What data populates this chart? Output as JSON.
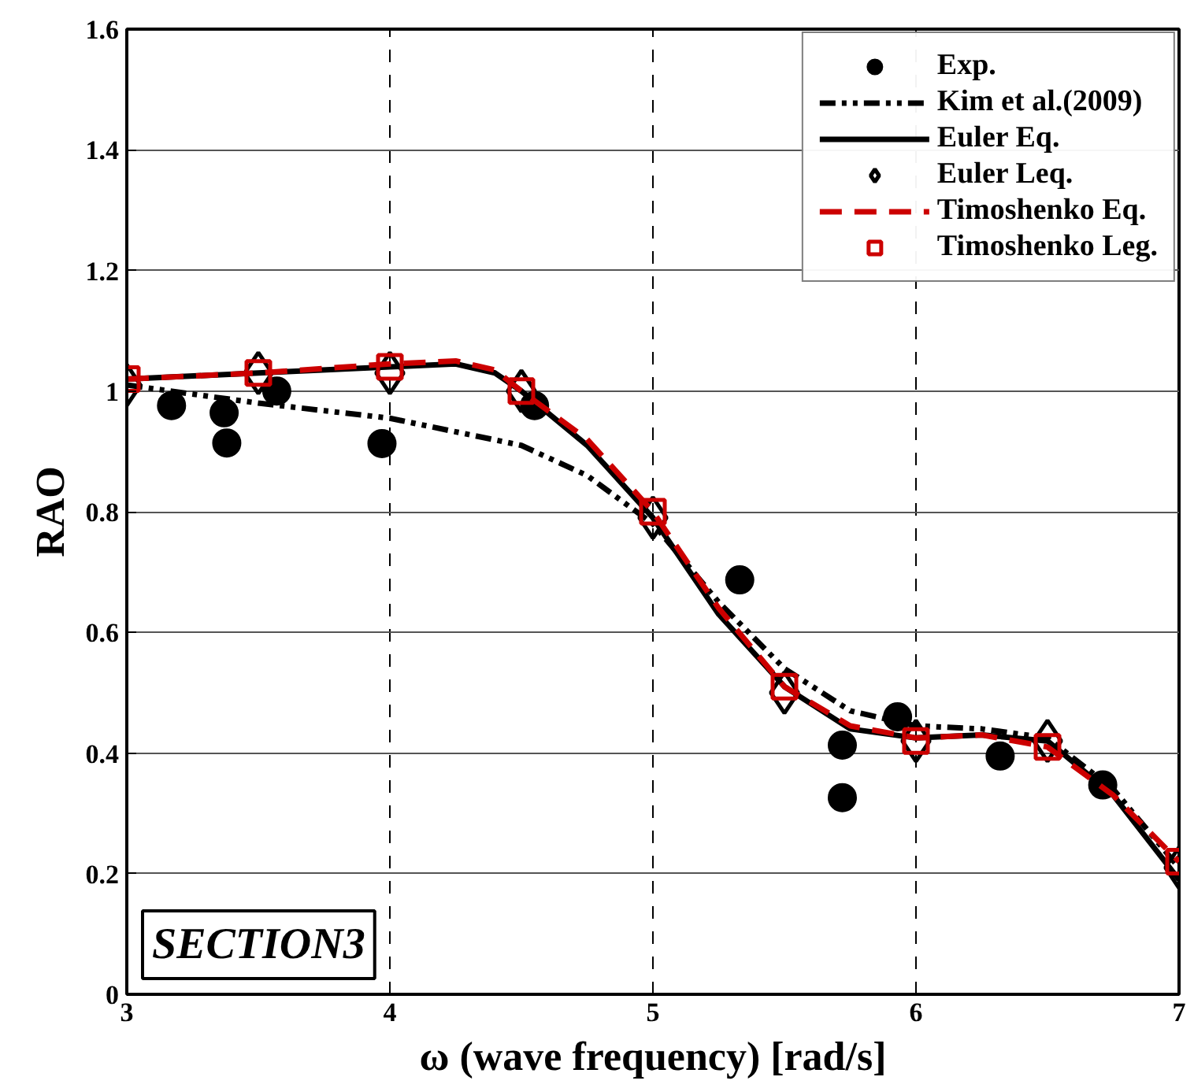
{
  "chart_data": {
    "type": "line",
    "xlabel": "ω (wave frequency) [rad/s]",
    "ylabel": "RAO",
    "xlim": [
      3,
      7
    ],
    "ylim": [
      0,
      1.6
    ],
    "xticks": [
      3,
      4,
      5,
      6,
      7
    ],
    "yticks": [
      0,
      0.2,
      0.4,
      0.6,
      0.8,
      1,
      1.2,
      1.4,
      1.6
    ],
    "grid": true,
    "legend": "top right",
    "annotations": [
      "SECTION3"
    ],
    "series": [
      {
        "name": "Exp.",
        "type": "scatter",
        "marker": "circle",
        "color": "#000000",
        "x": [
          3.17,
          3.37,
          3.38,
          3.57,
          3.97,
          4.55,
          5.33,
          5.72,
          5.72,
          5.93,
          6.32,
          6.71
        ],
        "values": [
          0.976,
          0.964,
          0.914,
          1.0,
          0.913,
          0.976,
          0.687,
          0.413,
          0.326,
          0.46,
          0.395,
          0.347
        ]
      },
      {
        "name": "Kim et al.(2009)",
        "line_style": "dashdot",
        "color": "#000000",
        "x": [
          3,
          3.5,
          4,
          4.5,
          4.75,
          5,
          5.25,
          5.5,
          5.75,
          6,
          6.25,
          6.5,
          6.75,
          7
        ],
        "values": [
          1.01,
          0.98,
          0.955,
          0.91,
          0.86,
          0.78,
          0.65,
          0.54,
          0.47,
          0.445,
          0.44,
          0.425,
          0.34,
          0.21
        ]
      },
      {
        "name": "Euler Eq.",
        "line_style": "solid",
        "color": "#000000",
        "x": [
          3,
          3.5,
          4,
          4.25,
          4.4,
          4.5,
          4.75,
          5,
          5.25,
          5.5,
          5.75,
          6,
          6.25,
          6.5,
          6.75,
          7
        ],
        "values": [
          1.02,
          1.03,
          1.04,
          1.045,
          1.03,
          1.0,
          0.91,
          0.79,
          0.63,
          0.51,
          0.44,
          0.425,
          0.43,
          0.42,
          0.33,
          0.19
        ]
      },
      {
        "name": "Euler Leq.",
        "type": "scatter",
        "marker": "diamond",
        "color": "#000000",
        "x": [
          3,
          3.5,
          4,
          4.5,
          5,
          5.5,
          6,
          6.5,
          7
        ],
        "values": [
          1.01,
          1.03,
          1.03,
          1.0,
          0.79,
          0.5,
          0.42,
          0.42,
          0.21
        ]
      },
      {
        "name": "Timoshenko Eq.",
        "line_style": "dashed",
        "color": "#cc0000",
        "x": [
          3,
          3.5,
          4,
          4.25,
          4.4,
          4.5,
          4.75,
          5,
          5.25,
          5.5,
          5.75,
          6,
          6.25,
          6.5,
          6.75,
          7
        ],
        "values": [
          1.02,
          1.03,
          1.045,
          1.05,
          1.035,
          1.0,
          0.92,
          0.8,
          0.64,
          0.51,
          0.445,
          0.425,
          0.43,
          0.41,
          0.33,
          0.22
        ]
      },
      {
        "name": "Timoshenko Leg.",
        "type": "scatter",
        "marker": "square",
        "color": "#cc0000",
        "x": [
          3,
          3.5,
          4,
          4.5,
          5,
          5.5,
          6,
          6.5,
          7
        ],
        "values": [
          1.02,
          1.03,
          1.04,
          1.0,
          0.8,
          0.51,
          0.42,
          0.41,
          0.22
        ]
      }
    ]
  }
}
